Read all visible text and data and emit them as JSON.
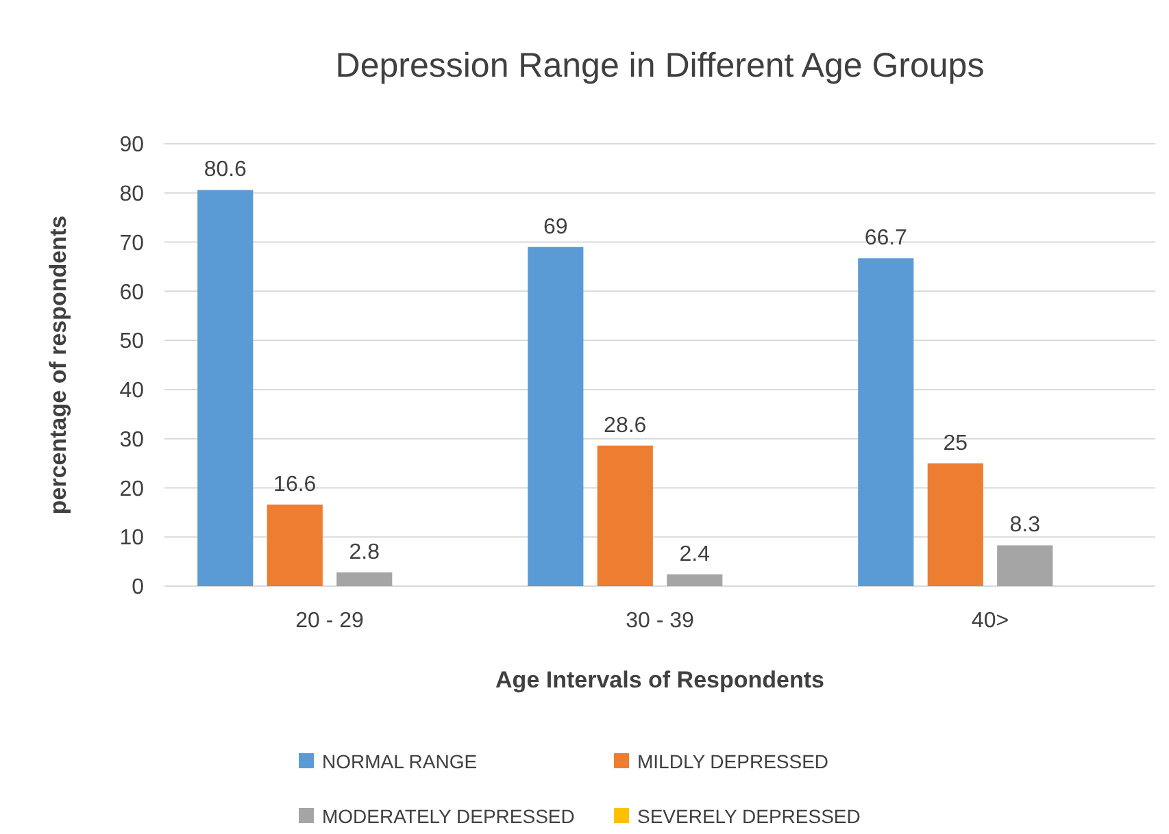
{
  "chart_data": {
    "type": "bar",
    "title": "Depression Range in Different Age Groups",
    "xlabel": "Age Intervals of Respondents",
    "ylabel": "percentage of respondents",
    "categories": [
      "20 - 29",
      "30 - 39",
      "40>"
    ],
    "series": [
      {
        "name": "NORMAL RANGE",
        "color": "#5b9bd5",
        "values": [
          80.6,
          69,
          66.7
        ]
      },
      {
        "name": "MILDLY DEPRESSED",
        "color": "#ed7d31",
        "values": [
          16.6,
          28.6,
          25
        ]
      },
      {
        "name": "MODERATELY DEPRESSED",
        "color": "#a5a5a5",
        "values": [
          2.8,
          2.4,
          8.3
        ]
      },
      {
        "name": "SEVERELY DEPRESSED",
        "color": "#ffc000",
        "values": [
          null,
          null,
          null
        ]
      }
    ],
    "ylim": [
      0,
      90
    ],
    "yticks": [
      0,
      10,
      20,
      30,
      40,
      50,
      60,
      70,
      80,
      90
    ],
    "grid": "y",
    "legend": "bottom",
    "data_labels": true
  }
}
